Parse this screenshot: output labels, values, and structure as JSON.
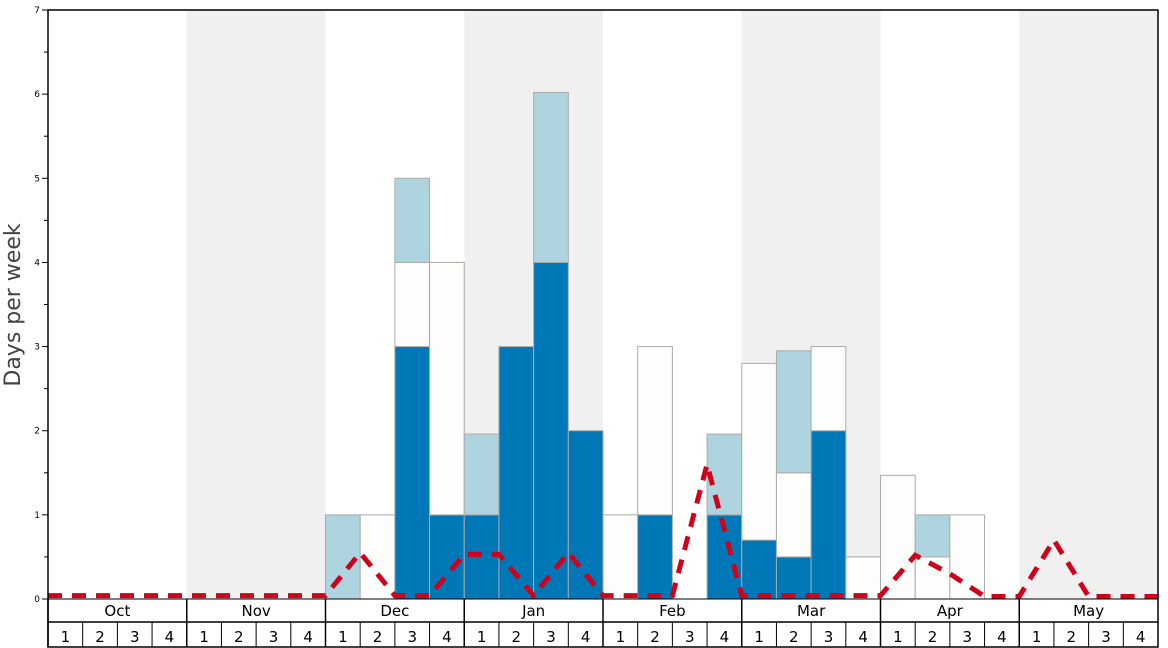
{
  "chart_data": {
    "type": "bar",
    "stacked": true,
    "title": "",
    "ylabel": "Days per week",
    "xlabel": "",
    "ylim": [
      0,
      7
    ],
    "yticks": [
      "0",
      "1",
      "2",
      "3",
      "4",
      "5",
      "6",
      "7"
    ],
    "months": [
      "Oct",
      "Nov",
      "Dec",
      "Jan",
      "Feb",
      "Mar",
      "Apr",
      "May"
    ],
    "week_labels": [
      "1",
      "2",
      "3",
      "4"
    ],
    "colors": {
      "dark": "#0077b6",
      "white": "#fdfdfb",
      "light": "#aed4df",
      "line": "#d0021b",
      "band": "#f0f0f0"
    },
    "series": [
      {
        "name": "dark",
        "values": [
          0,
          0,
          0,
          0,
          0,
          0,
          0,
          0,
          0,
          0,
          3,
          1,
          1,
          3,
          4,
          2,
          0,
          1,
          0,
          1,
          0.7,
          0.5,
          2,
          0,
          0,
          0,
          0,
          0,
          0,
          0,
          0,
          0
        ]
      },
      {
        "name": "white",
        "values": [
          0,
          0,
          0,
          0,
          0,
          0,
          0,
          0,
          0,
          1,
          1,
          3,
          0,
          0,
          0,
          0,
          1,
          2,
          0,
          0,
          2.1,
          1.0,
          1,
          0.5,
          1.47,
          0.5,
          1,
          0,
          0,
          0,
          0,
          0
        ]
      },
      {
        "name": "light",
        "values": [
          0,
          0,
          0,
          0,
          0,
          0,
          0,
          0,
          1,
          0,
          1,
          0,
          0.96,
          0,
          2.02,
          0,
          0,
          0,
          0,
          0.96,
          0,
          1.45,
          0,
          0,
          0,
          0.5,
          0,
          0,
          0,
          0,
          0,
          0
        ]
      }
    ],
    "line": {
      "name": "dashed",
      "values": [
        0.04,
        0.04,
        0.04,
        0.04,
        0.04,
        0.04,
        0.04,
        0.04,
        0.04,
        0.55,
        0.04,
        0.04,
        0.53,
        0.53,
        0.04,
        0.55,
        0.04,
        0.04,
        0.04,
        1.6,
        0.04,
        0.04,
        0.04,
        0.04,
        0.04,
        0.52,
        0.3,
        0.03,
        0.03,
        0.7,
        0.03,
        0.03,
        0.03
      ]
    }
  }
}
